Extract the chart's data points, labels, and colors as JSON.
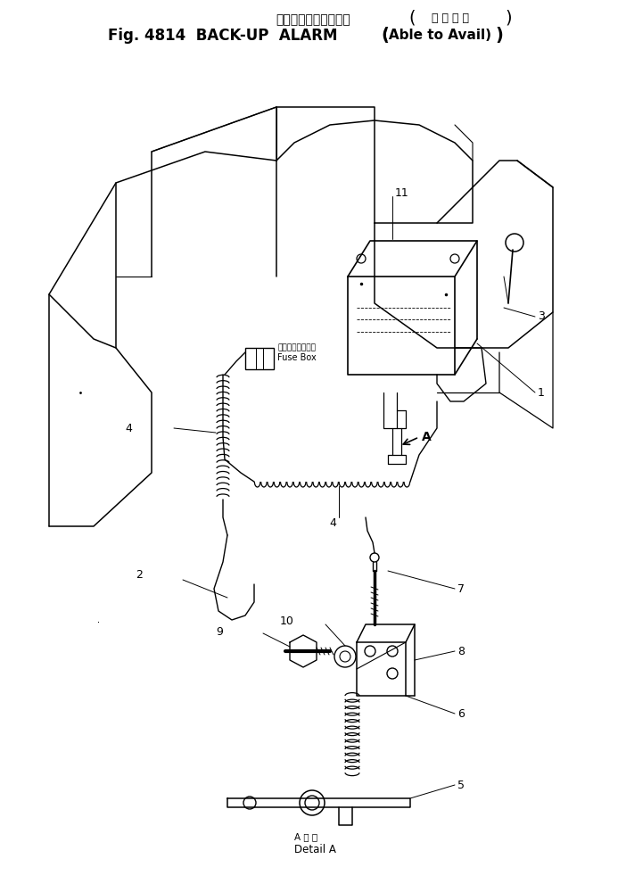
{
  "title_jp1": "バックアップアラーム",
  "title_jp2": "装 着 可 能",
  "title_en1": "Fig. 4814  BACK-UP  ALARM",
  "title_en2": "(Able to Avail)",
  "bg_color": "#ffffff",
  "lc": "#000000",
  "fig_width": 7.02,
  "fig_height": 10.0,
  "dpi": 100
}
